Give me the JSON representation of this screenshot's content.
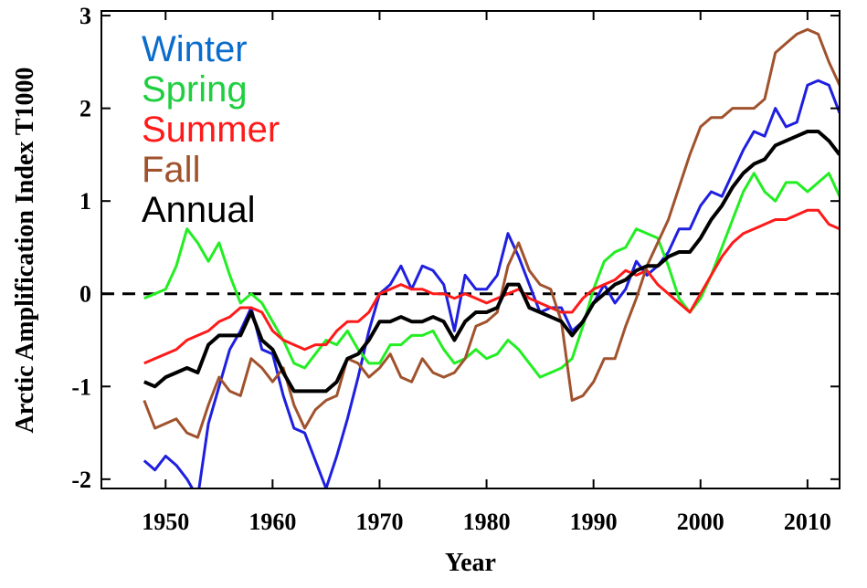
{
  "chart_data": {
    "type": "line",
    "xlabel": "Year",
    "ylabel": "Arctic Amplification Index T1000",
    "xlim": [
      1944,
      2013
    ],
    "ylim": [
      -2.1,
      3.05
    ],
    "xticks": [
      1950,
      1960,
      1970,
      1980,
      1990,
      2000,
      2010
    ],
    "yticks": [
      -2,
      -1,
      0,
      1,
      2,
      3
    ],
    "reference_line": {
      "y": 0,
      "style": "dashed"
    },
    "legend_position": "top-left",
    "x": [
      1948,
      1949,
      1950,
      1951,
      1952,
      1953,
      1954,
      1955,
      1956,
      1957,
      1958,
      1959,
      1960,
      1961,
      1962,
      1963,
      1964,
      1965,
      1966,
      1967,
      1968,
      1969,
      1970,
      1971,
      1972,
      1973,
      1974,
      1975,
      1976,
      1977,
      1978,
      1979,
      1980,
      1981,
      1982,
      1983,
      1984,
      1985,
      1986,
      1987,
      1988,
      1989,
      1990,
      1991,
      1992,
      1993,
      1994,
      1995,
      1996,
      1997,
      1998,
      1999,
      2000,
      2001,
      2002,
      2003,
      2004,
      2005,
      2006,
      2007,
      2008,
      2009,
      2010,
      2011,
      2012,
      2013
    ],
    "series": [
      {
        "name": "Winter",
        "color": "#0a6ccc",
        "line_color": "#1f1fe0",
        "values": [
          -1.8,
          -1.9,
          -1.75,
          -1.85,
          -2.0,
          -2.2,
          -1.4,
          -1.0,
          -0.6,
          -0.4,
          -0.15,
          -0.6,
          -0.65,
          -1.1,
          -1.45,
          -1.5,
          -1.8,
          -2.1,
          -1.75,
          -1.35,
          -0.9,
          -0.4,
          0.0,
          0.1,
          0.3,
          0.05,
          0.3,
          0.25,
          0.1,
          -0.4,
          0.2,
          0.05,
          0.05,
          0.2,
          0.65,
          0.4,
          0.1,
          -0.2,
          -0.15,
          -0.15,
          -0.4,
          -0.3,
          -0.1,
          0.1,
          -0.1,
          0.05,
          0.35,
          0.2,
          0.3,
          0.45,
          0.7,
          0.7,
          0.95,
          1.1,
          1.05,
          1.3,
          1.55,
          1.75,
          1.7,
          2.0,
          1.8,
          1.85,
          2.25,
          2.3,
          2.25,
          1.95
        ]
      },
      {
        "name": "Spring",
        "color": "#1fcf40",
        "line_color": "#22ee22",
        "values": [
          -0.05,
          0.0,
          0.05,
          0.3,
          0.7,
          0.55,
          0.35,
          0.55,
          0.2,
          -0.1,
          0.0,
          -0.1,
          -0.3,
          -0.5,
          -0.75,
          -0.8,
          -0.65,
          -0.5,
          -0.55,
          -0.4,
          -0.6,
          -0.75,
          -0.75,
          -0.55,
          -0.55,
          -0.45,
          -0.45,
          -0.4,
          -0.6,
          -0.75,
          -0.7,
          -0.6,
          -0.7,
          -0.65,
          -0.5,
          -0.6,
          -0.75,
          -0.9,
          -0.85,
          -0.8,
          -0.7,
          -0.35,
          0.05,
          0.35,
          0.45,
          0.5,
          0.7,
          0.65,
          0.6,
          0.3,
          -0.05,
          -0.2,
          -0.05,
          0.2,
          0.5,
          0.8,
          1.1,
          1.3,
          1.1,
          1.0,
          1.2,
          1.2,
          1.1,
          1.2,
          1.3,
          1.05
        ]
      },
      {
        "name": "Summer",
        "color": "#ff1a1a",
        "line_color": "#ff1a1a",
        "values": [
          -0.75,
          -0.7,
          -0.65,
          -0.6,
          -0.5,
          -0.45,
          -0.4,
          -0.3,
          -0.25,
          -0.15,
          -0.15,
          -0.2,
          -0.4,
          -0.5,
          -0.55,
          -0.6,
          -0.55,
          -0.55,
          -0.4,
          -0.3,
          -0.3,
          -0.2,
          0.0,
          0.05,
          0.1,
          0.05,
          0.05,
          0.0,
          0.0,
          -0.05,
          0.0,
          -0.05,
          -0.1,
          -0.05,
          0.0,
          0.05,
          -0.05,
          -0.1,
          -0.15,
          -0.2,
          -0.2,
          -0.05,
          0.05,
          0.1,
          0.15,
          0.25,
          0.2,
          0.25,
          0.1,
          0.0,
          -0.1,
          -0.2,
          0.0,
          0.2,
          0.4,
          0.55,
          0.65,
          0.7,
          0.75,
          0.8,
          0.8,
          0.85,
          0.9,
          0.9,
          0.75,
          0.7
        ]
      },
      {
        "name": "Fall",
        "color": "#a0522d",
        "line_color": "#a0522d",
        "values": [
          -1.15,
          -1.45,
          -1.4,
          -1.35,
          -1.5,
          -1.55,
          -1.2,
          -0.9,
          -1.05,
          -1.1,
          -0.7,
          -0.8,
          -0.95,
          -0.8,
          -1.2,
          -1.45,
          -1.25,
          -1.15,
          -1.1,
          -0.7,
          -0.75,
          -0.9,
          -0.8,
          -0.65,
          -0.9,
          -0.95,
          -0.7,
          -0.85,
          -0.9,
          -0.85,
          -0.7,
          -0.35,
          -0.3,
          -0.2,
          0.3,
          0.55,
          0.25,
          0.1,
          0.05,
          -0.3,
          -1.15,
          -1.1,
          -0.95,
          -0.7,
          -0.7,
          -0.35,
          -0.05,
          0.3,
          0.55,
          0.8,
          1.15,
          1.5,
          1.8,
          1.9,
          1.9,
          2.0,
          2.0,
          2.0,
          2.1,
          2.6,
          2.7,
          2.8,
          2.85,
          2.8,
          2.5,
          2.25
        ]
      },
      {
        "name": "Annual",
        "color": "#000000",
        "line_color": "#000000",
        "values": [
          -0.95,
          -1.0,
          -0.9,
          -0.85,
          -0.8,
          -0.85,
          -0.55,
          -0.45,
          -0.45,
          -0.45,
          -0.2,
          -0.5,
          -0.6,
          -0.85,
          -1.05,
          -1.05,
          -1.05,
          -1.05,
          -0.95,
          -0.7,
          -0.65,
          -0.5,
          -0.3,
          -0.3,
          -0.25,
          -0.3,
          -0.3,
          -0.25,
          -0.3,
          -0.5,
          -0.3,
          -0.2,
          -0.2,
          -0.15,
          0.1,
          0.1,
          -0.15,
          -0.2,
          -0.25,
          -0.3,
          -0.45,
          -0.3,
          -0.1,
          0.0,
          0.1,
          0.15,
          0.25,
          0.3,
          0.3,
          0.4,
          0.45,
          0.45,
          0.6,
          0.8,
          0.95,
          1.15,
          1.3,
          1.4,
          1.45,
          1.6,
          1.65,
          1.7,
          1.75,
          1.75,
          1.65,
          1.5
        ]
      }
    ]
  }
}
